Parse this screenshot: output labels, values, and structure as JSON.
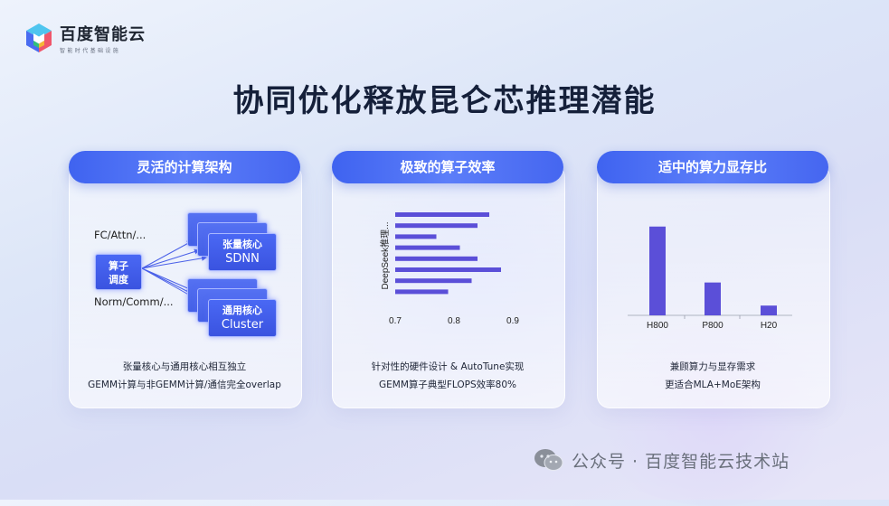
{
  "brand": {
    "name": "百度智能云",
    "tagline": "智能时代基础设施"
  },
  "page_title": "协同优化释放昆仑芯推理潜能",
  "cards": [
    {
      "title": "灵活的计算架构",
      "diagram": {
        "top_label": "FC/Attn/...",
        "bottom_label": "Norm/Comm/...",
        "core_line1": "算子",
        "core_line2": "调度",
        "tensor_line1": "张量核心",
        "tensor_line2": "SDNN",
        "general_line1": "通用核心",
        "general_line2": "Cluster"
      },
      "footer": [
        "张量核心与通用核心相互独立",
        "GEMM计算与非GEMM计算/通信完全overlap"
      ]
    },
    {
      "title": "极致的算子效率",
      "footer": [
        "针对性的硬件设计 & AutoTune实现",
        "GEMM算子典型FLOPS效率80%"
      ]
    },
    {
      "title": "适中的算力显存比",
      "footer": [
        "兼顾算力与显存需求",
        "更适合MLA+MoE架构"
      ]
    }
  ],
  "chart_data": [
    {
      "type": "bar",
      "orientation": "horizontal",
      "ylabel": "DeepSeek推理...",
      "xlabel": "",
      "xlim": [
        0.7,
        0.9
      ],
      "xticks": [
        0.7,
        0.8,
        0.9
      ],
      "values": [
        0.86,
        0.84,
        0.77,
        0.81,
        0.84,
        0.88,
        0.83,
        0.79
      ],
      "color": "#5b4fd8"
    },
    {
      "type": "bar",
      "categories": [
        "H800",
        "P800",
        "H20"
      ],
      "values": [
        100,
        37,
        11
      ],
      "ylim": [
        0,
        115
      ],
      "color": "#5b4fd8"
    }
  ],
  "footer_watermark": "公众号 · 百度智能云技术站",
  "colors": {
    "accent": "#4566f0",
    "bar": "#5b4fd8",
    "title": "#15203a"
  }
}
